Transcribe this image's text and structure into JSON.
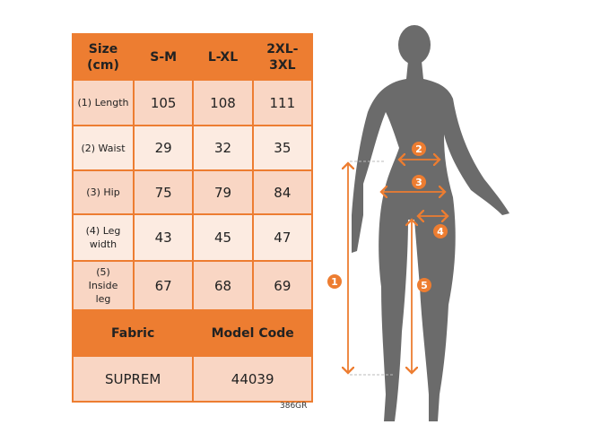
{
  "table": {
    "header": [
      "Size (cm)",
      "S-M",
      "L-XL",
      "2XL-3XL"
    ],
    "rows": [
      {
        "label": "(1) Length",
        "values": [
          "105",
          "108",
          "111"
        ]
      },
      {
        "label": "(2) Waist",
        "values": [
          "29",
          "32",
          "35"
        ]
      },
      {
        "label": "(3) Hip",
        "values": [
          "75",
          "79",
          "84"
        ]
      },
      {
        "label": "(4) Leg width",
        "values": [
          "43",
          "45",
          "47"
        ]
      },
      {
        "label": "(5) Inside leg",
        "values": [
          "67",
          "68",
          "69"
        ]
      }
    ],
    "info_header": [
      "Fabric",
      "Model Code"
    ],
    "info_values": [
      "SUPREM",
      "44039"
    ]
  },
  "product_code": "386GR",
  "figure": {
    "markers": [
      "1",
      "2",
      "3",
      "4",
      "5"
    ]
  },
  "colors": {
    "accent": "#ED7D31",
    "row_dark": "#F9D6C4",
    "row_light": "#FCEBE1",
    "silhouette": "#6B6B6B"
  }
}
